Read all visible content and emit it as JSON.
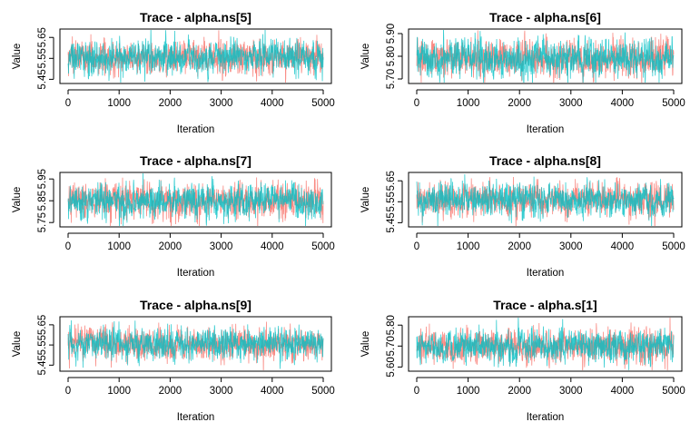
{
  "chart_data": [
    {
      "type": "line",
      "title": "Trace - alpha.ns[5]",
      "xlabel": "Iteration",
      "ylabel": "Value",
      "xlim": [
        0,
        5000
      ],
      "ylim": [
        5.43,
        5.69
      ],
      "xticks": [
        "0",
        "1000",
        "2000",
        "3000",
        "4000",
        "5000"
      ],
      "yticks": [
        "5.45",
        "5.55",
        "5.65"
      ],
      "ytick_values": [
        5.45,
        5.55,
        5.65
      ],
      "center": 5.555,
      "spread": 0.045,
      "series": [
        {
          "color": "#F8766D"
        },
        {
          "color": "#00BFC4"
        }
      ]
    },
    {
      "type": "line",
      "title": "Trace - alpha.ns[6]",
      "xlabel": "Iteration",
      "ylabel": "Value",
      "xlim": [
        0,
        5000
      ],
      "ylim": [
        5.68,
        5.92
      ],
      "xticks": [
        "0",
        "1000",
        "2000",
        "3000",
        "4000",
        "5000"
      ],
      "yticks": [
        "5.70",
        "5.80",
        "5.90"
      ],
      "ytick_values": [
        5.7,
        5.8,
        5.9
      ],
      "center": 5.79,
      "spread": 0.045,
      "series": [
        {
          "color": "#F8766D"
        },
        {
          "color": "#00BFC4"
        }
      ]
    },
    {
      "type": "line",
      "title": "Trace - alpha.ns[7]",
      "xlabel": "Iteration",
      "ylabel": "Value",
      "xlim": [
        0,
        5000
      ],
      "ylim": [
        5.73,
        5.98
      ],
      "xticks": [
        "0",
        "1000",
        "2000",
        "3000",
        "4000",
        "5000"
      ],
      "yticks": [
        "5.75",
        "5.85",
        "5.95"
      ],
      "ytick_values": [
        5.75,
        5.85,
        5.95
      ],
      "center": 5.85,
      "spread": 0.045,
      "series": [
        {
          "color": "#F8766D"
        },
        {
          "color": "#00BFC4"
        }
      ]
    },
    {
      "type": "line",
      "title": "Trace - alpha.ns[8]",
      "xlabel": "Iteration",
      "ylabel": "Value",
      "xlim": [
        0,
        5000
      ],
      "ylim": [
        5.43,
        5.69
      ],
      "xticks": [
        "0",
        "1000",
        "2000",
        "3000",
        "4000",
        "5000"
      ],
      "yticks": [
        "5.45",
        "5.55",
        "5.65"
      ],
      "ytick_values": [
        5.45,
        5.55,
        5.65
      ],
      "center": 5.56,
      "spread": 0.045,
      "series": [
        {
          "color": "#F8766D"
        },
        {
          "color": "#00BFC4"
        }
      ]
    },
    {
      "type": "line",
      "title": "Trace - alpha.ns[9]",
      "xlabel": "Iteration",
      "ylabel": "Value",
      "xlim": [
        0,
        5000
      ],
      "ylim": [
        5.42,
        5.69
      ],
      "xticks": [
        "0",
        "1000",
        "2000",
        "3000",
        "4000",
        "5000"
      ],
      "yticks": [
        "5.45",
        "5.55",
        "5.65"
      ],
      "ytick_values": [
        5.45,
        5.55,
        5.65
      ],
      "center": 5.555,
      "spread": 0.045,
      "series": [
        {
          "color": "#F8766D"
        },
        {
          "color": "#00BFC4"
        }
      ]
    },
    {
      "type": "line",
      "title": "Trace - alpha.s[1]",
      "xlabel": "Iteration",
      "ylabel": "Value",
      "xlim": [
        0,
        5000
      ],
      "ylim": [
        5.58,
        5.84
      ],
      "xticks": [
        "0",
        "1000",
        "2000",
        "3000",
        "4000",
        "5000"
      ],
      "yticks": [
        "5.60",
        "5.70",
        "5.80"
      ],
      "ytick_values": [
        5.6,
        5.7,
        5.8
      ],
      "center": 5.7,
      "spread": 0.045,
      "series": [
        {
          "color": "#F8766D"
        },
        {
          "color": "#00BFC4"
        }
      ]
    }
  ]
}
